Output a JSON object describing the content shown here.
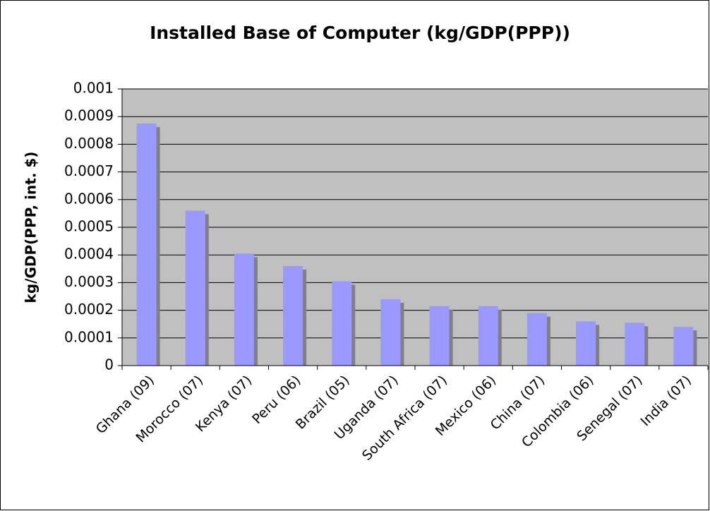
{
  "chart_data": {
    "type": "bar",
    "title": "Installed Base of Computer (kg/GDP(PPP))",
    "y_label": "kg/GDP(PPP, int. $)",
    "categories": [
      "Ghana (09)",
      "Morocco (07)",
      "Kenya (07)",
      "Peru (06)",
      "Brazil (05)",
      "Uganda (07)",
      "South Africa (07)",
      "Mexico (06)",
      "China (07)",
      "Colombia (06)",
      "Senegal (07)",
      "India (07)"
    ],
    "values": [
      0.000875,
      0.00056,
      0.000405,
      0.00036,
      0.000305,
      0.00024,
      0.000215,
      0.000215,
      0.00019,
      0.00016,
      0.000155,
      0.00014
    ],
    "color": "#9999ff",
    "ylim": [
      0,
      0.001
    ],
    "yticks": [
      0,
      0.0001,
      0.0002,
      0.0003,
      0.0004,
      0.0005,
      0.0006,
      0.0007,
      0.0008,
      0.0009,
      0.001
    ],
    "grid": true
  }
}
